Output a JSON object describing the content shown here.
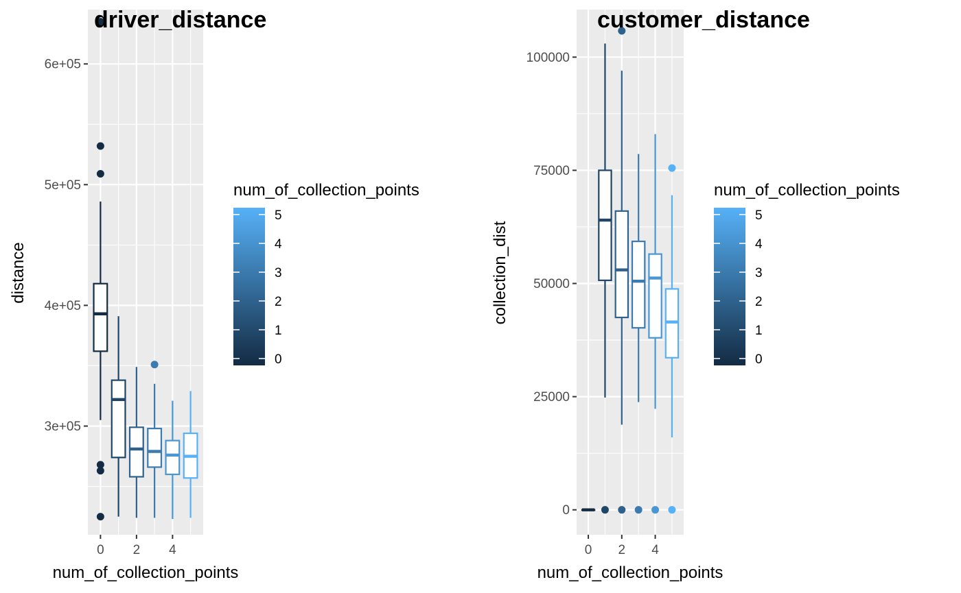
{
  "chart_data": [
    {
      "type": "boxplot",
      "title": "driver_distance",
      "xlabel": "num_of_collection_points",
      "ylabel": "distance",
      "xlim": [
        -0.7,
        5.7
      ],
      "ylim": [
        210000,
        645000
      ],
      "x_ticks": [
        0,
        2,
        4
      ],
      "x_tick_labels": [
        "0",
        "2",
        "4"
      ],
      "y_ticks": [
        300000,
        400000,
        500000,
        600000
      ],
      "y_tick_labels": [
        "3e+05",
        "4e+05",
        "5e+05",
        "6e+05"
      ],
      "grid": true,
      "legend": {
        "title": "num_of_collection_points",
        "type": "colorbar",
        "min": 0,
        "max": 5,
        "labels": [
          "5",
          "4",
          "3",
          "2",
          "1",
          "0"
        ],
        "low_color": "#132B43",
        "high_color": "#56B1F7",
        "placement": "right"
      },
      "boxes": [
        {
          "x": 0,
          "lower_whisker": 305000,
          "q1": 362000,
          "median": 393000,
          "q3": 418000,
          "upper_whisker": 486000,
          "outliers": [
            635000,
            532000,
            509000,
            268000,
            263000,
            225000
          ]
        },
        {
          "x": 1,
          "lower_whisker": 225000,
          "q1": 274000,
          "median": 322000,
          "q3": 338000,
          "upper_whisker": 391000,
          "outliers": []
        },
        {
          "x": 2,
          "lower_whisker": 224000,
          "q1": 258000,
          "median": 281000,
          "q3": 299000,
          "upper_whisker": 349000,
          "outliers": []
        },
        {
          "x": 3,
          "lower_whisker": 224000,
          "q1": 266000,
          "median": 279000,
          "q3": 298000,
          "upper_whisker": 335000,
          "outliers": [
            351000
          ]
        },
        {
          "x": 4,
          "lower_whisker": 223000,
          "q1": 260000,
          "median": 276000,
          "q3": 288000,
          "upper_whisker": 321000,
          "outliers": []
        },
        {
          "x": 5,
          "lower_whisker": 224000,
          "q1": 257000,
          "median": 275000,
          "q3": 294000,
          "upper_whisker": 329000,
          "outliers": []
        }
      ]
    },
    {
      "type": "boxplot",
      "title": "customer_distance",
      "xlabel": "num_of_collection_points",
      "ylabel": "collection_dist",
      "xlim": [
        -0.7,
        5.7
      ],
      "ylim": [
        -5500,
        110500
      ],
      "x_ticks": [
        0,
        2,
        4
      ],
      "x_tick_labels": [
        "0",
        "2",
        "4"
      ],
      "y_ticks": [
        0,
        25000,
        50000,
        75000,
        100000
      ],
      "y_tick_labels": [
        "0",
        "25000",
        "50000",
        "75000",
        "100000"
      ],
      "grid": true,
      "legend": {
        "title": "num_of_collection_points",
        "type": "colorbar",
        "min": 0,
        "max": 5,
        "labels": [
          "5",
          "4",
          "3",
          "2",
          "1",
          "0"
        ],
        "low_color": "#132B43",
        "high_color": "#56B1F7",
        "placement": "right"
      },
      "boxes": [
        {
          "x": 0,
          "lower_whisker": 0,
          "q1": 0,
          "median": 0,
          "q3": 0,
          "upper_whisker": 0,
          "outliers": []
        },
        {
          "x": 1,
          "lower_whisker": 24800,
          "q1": 50700,
          "median": 64000,
          "q3": 75000,
          "upper_whisker": 103000,
          "outliers": [
            0
          ]
        },
        {
          "x": 2,
          "lower_whisker": 18800,
          "q1": 42500,
          "median": 53000,
          "q3": 66000,
          "upper_whisker": 97000,
          "outliers": [
            105800,
            0
          ]
        },
        {
          "x": 3,
          "lower_whisker": 23800,
          "q1": 40200,
          "median": 50500,
          "q3": 59300,
          "upper_whisker": 78600,
          "outliers": [
            0
          ]
        },
        {
          "x": 4,
          "lower_whisker": 22300,
          "q1": 38000,
          "median": 51200,
          "q3": 56500,
          "upper_whisker": 83000,
          "outliers": [
            0
          ]
        },
        {
          "x": 5,
          "lower_whisker": 16000,
          "q1": 33600,
          "median": 41500,
          "q3": 48800,
          "upper_whisker": 69500,
          "outliers": [
            75500,
            0
          ]
        }
      ]
    }
  ]
}
